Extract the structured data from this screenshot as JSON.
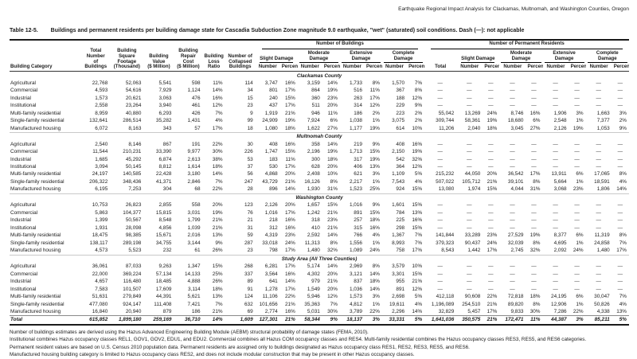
{
  "running_head": "Earthquake Regional Impact Analysis for Clackamas, Multnomah, and Washington Counties, Oregon",
  "table": {
    "label": "Table 12-5.",
    "title": "Buildings and permanent residents per building damage state for Cascadia Subduction Zone magnitude 9.0 earthquake, \"wet\" (saturated) soil conditions. Dash (—): not applicable",
    "columns_left": [
      {
        "label": "Building Category"
      },
      {
        "label": "Total\nNumber\nof\nBuildings"
      },
      {
        "label": "Building\nSquare\nFootage\n(Thousand)"
      },
      {
        "label": "Building\nValue\n($ Million)"
      },
      {
        "label": "Building\nRepair\nCost\n($ Million)"
      },
      {
        "label": "Building\nLoss\nRatio"
      },
      {
        "label": "Number of\nCollapsed\nBuildings"
      }
    ],
    "group_headers": {
      "buildings": "Number of Buildings",
      "residents": "Number of Permanent Residents"
    },
    "damage_headers": [
      "Slight Damage",
      "Moderate Damage",
      "Extensive Damage",
      "Complete Damage"
    ],
    "residents_total_header": "Total",
    "subheaders": {
      "number": "Number",
      "percent": "Percent"
    },
    "sections": [
      {
        "name": "Clackamas County",
        "rows": [
          {
            "category": "Agricultural",
            "values": [
              "22,768",
              "52,063",
              "5,541",
              "598",
              "11%",
              "114",
              "3,747",
              "16%",
              "3,159",
              "14%",
              "1,733",
              "8%",
              "1,570",
              "7%",
              "—",
              "—",
              "—",
              "—",
              "—",
              "—",
              "—",
              "—",
              "—"
            ]
          },
          {
            "category": "Commercial",
            "values": [
              "4,593",
              "54,616",
              "7,929",
              "1,124",
              "14%",
              "34",
              "801",
              "17%",
              "864",
              "19%",
              "516",
              "11%",
              "367",
              "8%",
              "—",
              "—",
              "—",
              "—",
              "—",
              "—",
              "—",
              "—",
              "—"
            ]
          },
          {
            "category": "Industrial",
            "values": [
              "1,573",
              "20,621",
              "3,063",
              "476",
              "16%",
              "15",
              "240",
              "15%",
              "360",
              "23%",
              "263",
              "17%",
              "188",
              "12%",
              "—",
              "—",
              "—",
              "—",
              "—",
              "—",
              "—",
              "—",
              "—"
            ]
          },
          {
            "category": "Institutional",
            "values": [
              "2,558",
              "23,264",
              "3,940",
              "461",
              "12%",
              "23",
              "437",
              "17%",
              "511",
              "20%",
              "314",
              "12%",
              "229",
              "9%",
              "—",
              "—",
              "—",
              "—",
              "—",
              "—",
              "—",
              "—",
              "—"
            ]
          },
          {
            "category": "Multi-family residential",
            "values": [
              "8,959",
              "40,880",
              "6,293",
              "426",
              "7%",
              "9",
              "1,919",
              "21%",
              "946",
              "11%",
              "186",
              "2%",
              "223",
              "2%",
              "55,042",
              "13,269",
              "24%",
              "8,746",
              "16%",
              "1,906",
              "3%",
              "1,663",
              "3%"
            ]
          },
          {
            "category": "Single-family residential",
            "values": [
              "132,641",
              "286,514",
              "35,282",
              "1,431",
              "4%",
              "99",
              "24,909",
              "19%",
              "7,924",
              "6%",
              "1,038",
              "1%",
              "3,075",
              "2%",
              "309,744",
              "58,361",
              "19%",
              "18,680",
              "6%",
              "2,548",
              "1%",
              "7,377",
              "2%"
            ]
          },
          {
            "category": "Manufactured housing",
            "values": [
              "6,072",
              "8,163",
              "343",
              "57",
              "17%",
              "18",
              "1,080",
              "18%",
              "1,622",
              "27%",
              "1,177",
              "19%",
              "614",
              "10%",
              "11,206",
              "2,040",
              "18%",
              "3,045",
              "27%",
              "2,126",
              "19%",
              "1,053",
              "9%"
            ]
          }
        ]
      },
      {
        "name": "Multnomah County",
        "rows": [
          {
            "category": "Agricultural",
            "values": [
              "2,540",
              "8,146",
              "867",
              "191",
              "22%",
              "30",
              "408",
              "16%",
              "358",
              "14%",
              "219",
              "9%",
              "408",
              "16%",
              "—",
              "—",
              "—",
              "—",
              "—",
              "—",
              "—",
              "—",
              "—"
            ]
          },
          {
            "category": "Commercial",
            "values": [
              "11,544",
              "210,231",
              "33,390",
              "9,977",
              "30%",
              "226",
              "1,747",
              "15%",
              "2,196",
              "19%",
              "1,713",
              "15%",
              "2,150",
              "19%",
              "—",
              "—",
              "—",
              "—",
              "—",
              "—",
              "—",
              "—",
              "—"
            ]
          },
          {
            "category": "Industrial",
            "values": [
              "1,685",
              "45,292",
              "6,874",
              "2,613",
              "38%",
              "53",
              "183",
              "11%",
              "300",
              "18%",
              "317",
              "19%",
              "542",
              "32%",
              "—",
              "—",
              "—",
              "—",
              "—",
              "—",
              "—",
              "—",
              "—"
            ]
          },
          {
            "category": "Institutional",
            "values": [
              "3,094",
              "50,145",
              "8,812",
              "1,614",
              "18%",
              "37",
              "530",
              "17%",
              "628",
              "20%",
              "406",
              "13%",
              "364",
              "12%",
              "—",
              "—",
              "—",
              "—",
              "—",
              "—",
              "—",
              "—",
              "—"
            ]
          },
          {
            "category": "Multi-family residential",
            "values": [
              "24,197",
              "140,585",
              "22,428",
              "3,180",
              "14%",
              "56",
              "4,868",
              "20%",
              "2,408",
              "10%",
              "621",
              "3%",
              "1,109",
              "5%",
              "215,232",
              "44,050",
              "20%",
              "36,542",
              "17%",
              "13,911",
              "6%",
              "17,065",
              "8%"
            ]
          },
          {
            "category": "Single-family residential",
            "values": [
              "206,322",
              "348,436",
              "41,371",
              "2,846",
              "7%",
              "247",
              "43,729",
              "21%",
              "16,126",
              "8%",
              "2,217",
              "1%",
              "7,543",
              "4%",
              "507,022",
              "105,712",
              "21%",
              "39,101",
              "8%",
              "5,664",
              "1%",
              "18,591",
              "4%"
            ]
          },
          {
            "category": "Manufactured housing",
            "values": [
              "6,195",
              "7,253",
              "304",
              "68",
              "22%",
              "28",
              "896",
              "14%",
              "1,930",
              "31%",
              "1,523",
              "25%",
              "924",
              "15%",
              "13,080",
              "1,974",
              "15%",
              "4,044",
              "31%",
              "3,068",
              "23%",
              "1,806",
              "14%"
            ]
          }
        ]
      },
      {
        "name": "Washington County",
        "rows": [
          {
            "category": "Agricultural",
            "values": [
              "10,753",
              "26,823",
              "2,855",
              "558",
              "20%",
              "123",
              "2,126",
              "20%",
              "1,657",
              "15%",
              "1,016",
              "9%",
              "1,601",
              "15%",
              "—",
              "—",
              "—",
              "—",
              "—",
              "—",
              "—",
              "—",
              "—"
            ]
          },
          {
            "category": "Commercial",
            "values": [
              "5,863",
              "104,377",
              "15,815",
              "3,031",
              "19%",
              "76",
              "1,016",
              "17%",
              "1,242",
              "21%",
              "891",
              "15%",
              "784",
              "13%",
              "—",
              "—",
              "—",
              "—",
              "—",
              "—",
              "—",
              "—",
              "—"
            ]
          },
          {
            "category": "Industrial",
            "values": [
              "1,399",
              "50,567",
              "8,548",
              "1,799",
              "21%",
              "21",
              "218",
              "16%",
              "318",
              "23%",
              "257",
              "18%",
              "225",
              "16%",
              "—",
              "—",
              "—",
              "—",
              "—",
              "—",
              "—",
              "—",
              "—"
            ]
          },
          {
            "category": "Institutional",
            "values": [
              "1,931",
              "28,098",
              "4,856",
              "1,039",
              "21%",
              "31",
              "312",
              "16%",
              "410",
              "21%",
              "315",
              "16%",
              "298",
              "15%",
              "—",
              "—",
              "—",
              "—",
              "—",
              "—",
              "—",
              "—",
              "—"
            ]
          },
          {
            "category": "Multi-family residential",
            "values": [
              "18,475",
              "98,385",
              "15,671",
              "2,016",
              "13%",
              "59",
              "4,319",
              "23%",
              "2,592",
              "14%",
              "766",
              "4%",
              "1,367",
              "7%",
              "141,844",
              "33,289",
              "23%",
              "27,529",
              "19%",
              "8,377",
              "6%",
              "11,319",
              "8%"
            ]
          },
          {
            "category": "Single-family residential",
            "values": [
              "138,117",
              "289,198",
              "34,755",
              "3,144",
              "9%",
              "287",
              "33,018",
              "24%",
              "11,313",
              "8%",
              "1,556",
              "1%",
              "8,993",
              "7%",
              "379,323",
              "90,437",
              "24%",
              "32,039",
              "8%",
              "4,695",
              "1%",
              "24,858",
              "7%"
            ]
          },
          {
            "category": "Manufactured housing",
            "values": [
              "4,573",
              "5,523",
              "232",
              "61",
              "26%",
              "23",
              "798",
              "17%",
              "1,480",
              "32%",
              "1,089",
              "24%",
              "758",
              "17%",
              "8,543",
              "1,442",
              "17%",
              "2,745",
              "32%",
              "2,092",
              "24%",
              "1,480",
              "17%"
            ]
          }
        ]
      },
      {
        "name": "Study Area (All Three Counties)",
        "rows": [
          {
            "category": "Agricultural",
            "values": [
              "36,061",
              "87,033",
              "9,263",
              "1,347",
              "15%",
              "268",
              "6,281",
              "17%",
              "5,174",
              "14%",
              "2,969",
              "8%",
              "3,579",
              "10%",
              "—",
              "—",
              "—",
              "—",
              "—",
              "—",
              "—",
              "—",
              "—"
            ]
          },
          {
            "category": "Commercial",
            "values": [
              "22,000",
              "369,224",
              "57,134",
              "14,133",
              "25%",
              "337",
              "3,564",
              "16%",
              "4,302",
              "20%",
              "3,121",
              "14%",
              "3,301",
              "15%",
              "—",
              "—",
              "—",
              "—",
              "—",
              "—",
              "—",
              "—",
              "—"
            ]
          },
          {
            "category": "Industrial",
            "values": [
              "4,657",
              "116,480",
              "18,485",
              "4,888",
              "26%",
              "89",
              "641",
              "14%",
              "979",
              "21%",
              "837",
              "18%",
              "955",
              "21%",
              "—",
              "—",
              "—",
              "—",
              "—",
              "—",
              "—",
              "—",
              "—"
            ]
          },
          {
            "category": "Institutional",
            "values": [
              "7,583",
              "101,507",
              "17,609",
              "3,114",
              "18%",
              "91",
              "1,278",
              "17%",
              "1,549",
              "20%",
              "1,036",
              "14%",
              "891",
              "12%",
              "—",
              "—",
              "—",
              "—",
              "—",
              "—",
              "—",
              "—",
              "—"
            ]
          },
          {
            "category": "Multi-family residential",
            "values": [
              "51,631",
              "279,849",
              "44,391",
              "5,621",
              "13%",
              "124",
              "11,106",
              "22%",
              "5,946",
              "12%",
              "1,573",
              "3%",
              "2,698",
              "5%",
              "412,118",
              "90,608",
              "22%",
              "72,818",
              "18%",
              "24,195",
              "6%",
              "30,047",
              "7%"
            ]
          },
          {
            "category": "Single-family residential",
            "values": [
              "477,080",
              "924,147",
              "111,408",
              "7,421",
              "7%",
              "632",
              "101,656",
              "21%",
              "35,363",
              "7%",
              "4,812",
              "1%",
              "19,611",
              "4%",
              "1,196,089",
              "254,510",
              "21%",
              "89,820",
              "8%",
              "12,906",
              "1%",
              "50,826",
              "4%"
            ]
          },
          {
            "category": "Manufactured housing",
            "values": [
              "16,840",
              "20,940",
              "879",
              "186",
              "21%",
              "69",
              "2,774",
              "16%",
              "5,031",
              "30%",
              "3,789",
              "22%",
              "2,296",
              "14%",
              "32,829",
              "5,457",
              "17%",
              "9,833",
              "30%",
              "7,286",
              "22%",
              "4,338",
              "13%"
            ]
          }
        ]
      }
    ],
    "total": {
      "category": "Total",
      "values": [
        "615,852",
        "1,899,180",
        "259,169",
        "36,710",
        "14%",
        "1,609",
        "127,301",
        "21%",
        "58,344",
        "9%",
        "18,137",
        "3%",
        "33,331",
        "5%",
        "1,641,036",
        "350,575",
        "21%",
        "172,471",
        "11%",
        "44,387",
        "3%",
        "85,211",
        "5%"
      ]
    },
    "footnotes": [
      "Number of buildings estimates are derived using the Hazus Advanced Engineering Building Module (AEBM) structural probability of damage states (FEMA, 2010).",
      "Institutional combines Hazus occupancy classes REL1, GOV1, GOV2, EDU1, and EDU2. Commercial combines all Hazus COM occupancy classes and RES4. Multi-family residential combines the Hazus occupancy classes RES3, RES5, and RES6 categories.",
      "Permanent resident values are based on U.S. Census 2010 population data. Permanent residents are assigned only to buildings designated as Hazus occupancy class RES1, RES2, RES3, RES5, and RES6.",
      "Manufactured housing building category is limited to Hazus occupancy class RES2, and does not include modular construction that may be present in other Hazus occupancy classes."
    ]
  }
}
